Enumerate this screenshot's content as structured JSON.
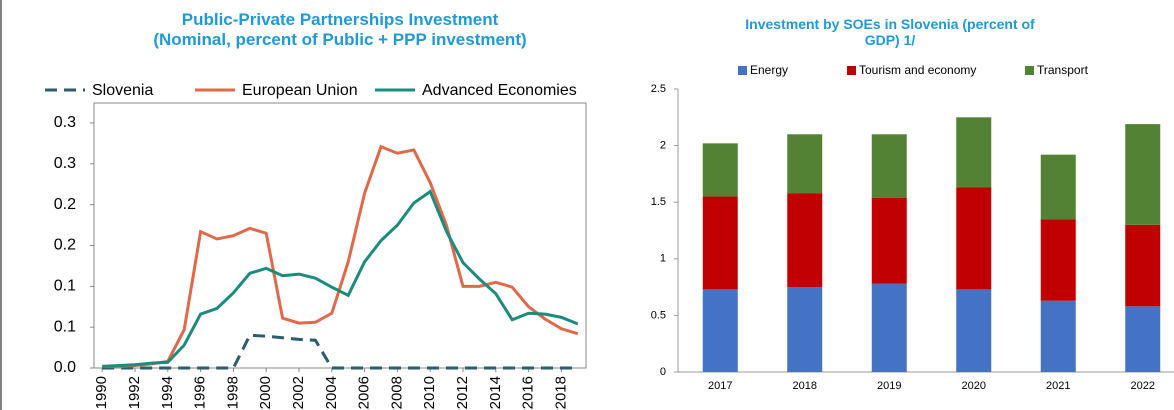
{
  "chart_data": [
    {
      "type": "line",
      "title": "Public-Private Partnerships Investment\n(Nominal, percent of Public + PPP investment)",
      "x": [
        1990,
        1991,
        1992,
        1993,
        1994,
        1995,
        1996,
        1997,
        1998,
        1999,
        2000,
        2001,
        2002,
        2003,
        2004,
        2005,
        2006,
        2007,
        2008,
        2009,
        2010,
        2011,
        2012,
        2013,
        2014,
        2015,
        2016,
        2017,
        2018,
        2019
      ],
      "xlim": [
        1989.5,
        2019.5
      ],
      "xticks": [
        1990,
        1992,
        1994,
        1996,
        1998,
        2000,
        2002,
        2004,
        2006,
        2008,
        2010,
        2012,
        2014,
        2016,
        2018
      ],
      "ylim": [
        0,
        0.3
      ],
      "yticks": [
        {
          "value": 0,
          "label": "0.0"
        },
        {
          "value": 0.05,
          "label": "0.1"
        },
        0.1,
        {
          "value": 0.15,
          "label": "0.2"
        },
        0.2,
        {
          "value": 0.25,
          "label": "0.3"
        },
        0.3
      ],
      "legend": "top",
      "grid": false,
      "series": [
        {
          "name": "Slovenia",
          "color": "#2b5d6b",
          "dashed": true,
          "values": [
            0,
            0,
            0,
            0,
            0,
            0,
            0,
            0,
            0,
            0.04,
            0.039,
            0.037,
            0.035,
            0.034,
            0,
            0,
            0,
            0,
            0,
            0,
            0,
            0,
            0,
            0,
            0,
            0,
            0,
            0,
            0,
            0
          ]
        },
        {
          "name": "European Union",
          "color": "#e0694a",
          "dashed": false,
          "values": [
            0.002,
            0.002,
            0.003,
            0.005,
            0.008,
            0.047,
            0.167,
            0.158,
            0.162,
            0.171,
            0.165,
            0.061,
            0.055,
            0.056,
            0.067,
            0.13,
            0.214,
            0.271,
            0.263,
            0.267,
            0.227,
            0.174,
            0.1,
            0.1,
            0.105,
            0.099,
            0.075,
            0.06,
            0.048,
            0.042
          ]
        },
        {
          "name": "Advanced Economies",
          "color": "#1b8c7c",
          "dashed": false,
          "values": [
            0.002,
            0.003,
            0.004,
            0.006,
            0.007,
            0.028,
            0.066,
            0.073,
            0.092,
            0.116,
            0.122,
            0.113,
            0.115,
            0.11,
            0.099,
            0.089,
            0.13,
            0.156,
            0.175,
            0.202,
            0.216,
            0.167,
            0.129,
            0.109,
            0.091,
            0.059,
            0.067,
            0.066,
            0.062,
            0.054
          ]
        }
      ]
    },
    {
      "type": "bar",
      "stacked": true,
      "title": "Investment by SOEs in Slovenia (percent of\nGDP) 1/",
      "categories": [
        "2017",
        "2018",
        "2019",
        "2020",
        "2021",
        "2022"
      ],
      "ylim": [
        0,
        2.5
      ],
      "yticks": [
        0,
        0.5,
        1,
        1.5,
        2,
        2.5
      ],
      "legend": "top",
      "grid": false,
      "series": [
        {
          "name": "Energy",
          "color": "#4472c4",
          "values": [
            0.73,
            0.75,
            0.78,
            0.73,
            0.63,
            0.58
          ]
        },
        {
          "name": "Tourism and economy",
          "color": "#c00000",
          "values": [
            0.82,
            0.83,
            0.76,
            0.9,
            0.72,
            0.72
          ]
        },
        {
          "name": "Transport",
          "color": "#548235",
          "values": [
            0.47,
            0.52,
            0.56,
            0.62,
            0.57,
            0.89
          ]
        }
      ]
    }
  ]
}
